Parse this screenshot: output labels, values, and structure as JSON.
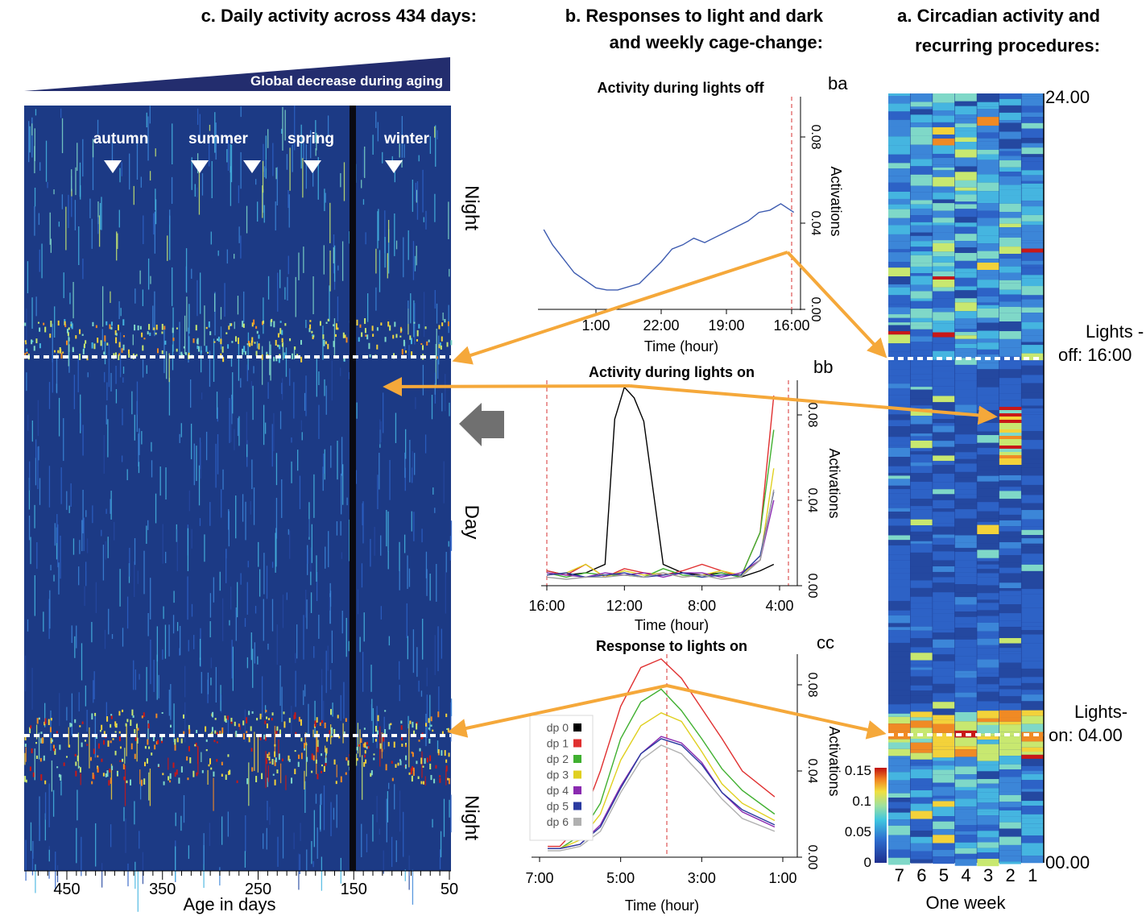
{
  "headers": {
    "a_line1": "a. Circadian activity and",
    "a_line2": "recurring procedures:",
    "b_line1": "b. Responses to light and dark",
    "b_line2": "and weekly cage-change:",
    "c_line1": "c. Daily activity across 434 days:"
  },
  "colors": {
    "heatmap_bg": "#1f3a8f",
    "arrow": "#f5a83a",
    "dashed_line": "#ffffff",
    "banner": "#232d6e",
    "gray_arrow": "#707070",
    "vline": "#e06060"
  },
  "chart_data": [
    {
      "id": "a",
      "type": "heatmap",
      "title": "a. Circadian activity and recurring procedures:",
      "xlabel": "One week",
      "x_ticks": [
        "1",
        "2",
        "3",
        "4",
        "5",
        "6",
        "7"
      ],
      "y_ticks": [
        "24.00",
        "00.00"
      ],
      "markers": [
        {
          "label_line1": "Lights -",
          "label_line2": "off: 16:00"
        },
        {
          "label_line1": "Lights-",
          "label_line2": "on: 04.00"
        }
      ],
      "colorbar": {
        "ticks": [
          "0",
          "0.05",
          "0.1",
          "0.15"
        ],
        "range": [
          0,
          0.15
        ]
      }
    },
    {
      "id": "ba",
      "type": "line",
      "panel_label": "ba",
      "title": "Activity during lights off",
      "xlabel": "Time (hour)",
      "ylabel": "Activations",
      "x_ticks": [
        "16:00",
        "19:00",
        "22:00",
        "1:00"
      ],
      "y_ticks": [
        "0.00",
        "0.04",
        "0.08"
      ],
      "ylim": [
        0,
        0.1
      ],
      "series": [
        {
          "color": "#3d5bb0",
          "x": [
            15.9,
            16.5,
            17.0,
            17.5,
            18.0,
            19.0,
            20.0,
            20.5,
            21.0,
            21.5,
            22.0,
            23.0,
            24.0,
            24.5,
            25.0,
            26.0,
            27.0,
            27.4
          ],
          "values": [
            0.045,
            0.049,
            0.046,
            0.045,
            0.041,
            0.036,
            0.031,
            0.033,
            0.03,
            0.028,
            0.022,
            0.012,
            0.009,
            0.009,
            0.01,
            0.017,
            0.03,
            0.037
          ]
        }
      ]
    },
    {
      "id": "bb",
      "type": "line",
      "panel_label": "bb",
      "title": "Activity during lights on",
      "xlabel": "Time (hour)",
      "ylabel": "Activations",
      "x_ticks": [
        "4:00",
        "8:00",
        "12:00",
        "16:00"
      ],
      "y_ticks": [
        "0.00",
        "0.04",
        "0.08"
      ],
      "ylim": [
        0,
        0.1
      ],
      "series": [
        {
          "color": "#000000",
          "x": [
            4.3,
            5,
            6,
            7,
            8,
            9,
            10,
            11,
            11.5,
            12,
            12.5,
            13,
            14,
            15,
            16
          ],
          "values": [
            0.01,
            0.007,
            0.004,
            0.006,
            0.005,
            0.006,
            0.01,
            0.077,
            0.088,
            0.093,
            0.078,
            0.01,
            0.006,
            0.005,
            0.007
          ]
        },
        {
          "color": "#e03030",
          "x": [
            4.3,
            5,
            6,
            7,
            8,
            9,
            10,
            11,
            12,
            13,
            14,
            15,
            16
          ],
          "values": [
            0.089,
            0.025,
            0.004,
            0.007,
            0.01,
            0.007,
            0.005,
            0.006,
            0.008,
            0.004,
            0.01,
            0.005,
            0.007
          ]
        },
        {
          "color": "#40b030",
          "x": [
            4.3,
            5,
            6,
            7,
            8,
            9,
            10,
            11,
            12,
            13,
            14,
            15,
            16
          ],
          "values": [
            0.073,
            0.025,
            0.004,
            0.006,
            0.004,
            0.005,
            0.008,
            0.004,
            0.005,
            0.005,
            0.006,
            0.004,
            0.006
          ]
        },
        {
          "color": "#e0d020",
          "x": [
            4.3,
            5,
            6,
            7,
            8,
            9,
            10,
            11,
            12,
            13,
            14,
            15,
            16
          ],
          "values": [
            0.055,
            0.012,
            0.005,
            0.007,
            0.005,
            0.004,
            0.006,
            0.005,
            0.007,
            0.004,
            0.01,
            0.006,
            0.005
          ]
        },
        {
          "color": "#8a2ab0",
          "x": [
            4.3,
            5,
            6,
            7,
            8,
            9,
            10,
            11,
            12,
            13,
            14,
            15,
            16
          ],
          "values": [
            0.04,
            0.012,
            0.006,
            0.004,
            0.006,
            0.006,
            0.004,
            0.006,
            0.005,
            0.006,
            0.004,
            0.005,
            0.006
          ]
        },
        {
          "color": "#2a3aa0",
          "x": [
            4.3,
            5,
            6,
            7,
            8,
            9,
            10,
            11,
            12,
            13,
            14,
            15,
            16
          ],
          "values": [
            0.044,
            0.014,
            0.005,
            0.005,
            0.004,
            0.006,
            0.005,
            0.004,
            0.006,
            0.005,
            0.004,
            0.006,
            0.005
          ]
        },
        {
          "color": "#a0a0a0",
          "x": [
            4.3,
            5,
            6,
            7,
            8,
            9,
            10,
            11,
            12,
            13,
            14,
            15,
            16
          ],
          "values": [
            0.045,
            0.012,
            0.004,
            0.003,
            0.005,
            0.004,
            0.006,
            0.004,
            0.005,
            0.004,
            0.004,
            0.003,
            0.004
          ]
        }
      ]
    },
    {
      "id": "cc",
      "type": "line",
      "panel_label": "cc",
      "title": "Response to lights on",
      "xlabel": "Time (hour)",
      "ylabel": "Activations",
      "x_ticks": [
        "1:00",
        "3:00",
        "5:00",
        "7:00"
      ],
      "y_ticks": [
        "0.00",
        "0.04",
        "0.08"
      ],
      "ylim": [
        0,
        0.1
      ],
      "legend": [
        "dp 0",
        "dp 1",
        "dp 2",
        "dp 3",
        "dp 4",
        "dp 5",
        "dp 6"
      ],
      "legend_colors": [
        "#000000",
        "#e03030",
        "#40b030",
        "#e0d020",
        "#8a2ab0",
        "#2a3aa0",
        "#b0b0b0"
      ],
      "series": [
        {
          "name": "dp 1",
          "color": "#e03030",
          "x": [
            1.2,
            2,
            2.5,
            3,
            3.5,
            4,
            4.5,
            5,
            5.5,
            6,
            6.5,
            6.8
          ],
          "values": [
            0.028,
            0.04,
            0.055,
            0.069,
            0.083,
            0.092,
            0.088,
            0.07,
            0.04,
            0.015,
            0.005,
            0.005
          ]
        },
        {
          "name": "dp 2",
          "color": "#40b030",
          "x": [
            1.2,
            2,
            2.5,
            3,
            3.5,
            4,
            4.5,
            5,
            5.5,
            6,
            6.5,
            6.8
          ],
          "values": [
            0.02,
            0.031,
            0.041,
            0.055,
            0.068,
            0.078,
            0.072,
            0.055,
            0.025,
            0.01,
            0.004,
            0.004
          ]
        },
        {
          "name": "dp 3",
          "color": "#e0d020",
          "x": [
            1.2,
            2,
            2.5,
            3,
            3.5,
            4,
            4.5,
            5,
            5.5,
            6,
            6.5,
            6.8
          ],
          "values": [
            0.017,
            0.025,
            0.034,
            0.049,
            0.063,
            0.067,
            0.061,
            0.045,
            0.02,
            0.008,
            0.004,
            0.004
          ]
        },
        {
          "name": "dp 4",
          "color": "#8a2ab0",
          "x": [
            1.2,
            2,
            2.5,
            3,
            3.5,
            4,
            4.5,
            5,
            5.5,
            6,
            6.5,
            6.8
          ],
          "values": [
            0.014,
            0.021,
            0.03,
            0.044,
            0.053,
            0.056,
            0.048,
            0.033,
            0.015,
            0.006,
            0.004,
            0.004
          ]
        },
        {
          "name": "dp 5",
          "color": "#2a3aa0",
          "x": [
            1.2,
            2,
            2.5,
            3,
            3.5,
            4,
            4.5,
            5,
            5.5,
            6,
            6.5,
            6.8
          ],
          "values": [
            0.015,
            0.022,
            0.03,
            0.043,
            0.052,
            0.055,
            0.048,
            0.032,
            0.014,
            0.006,
            0.004,
            0.004
          ]
        },
        {
          "name": "dp 6",
          "color": "#b0b0b0",
          "x": [
            1.2,
            2,
            2.5,
            3,
            3.5,
            4,
            4.5,
            5,
            5.5,
            6,
            6.5,
            6.8
          ],
          "values": [
            0.012,
            0.018,
            0.027,
            0.038,
            0.048,
            0.052,
            0.045,
            0.03,
            0.012,
            0.005,
            0.003,
            0.003
          ]
        }
      ]
    },
    {
      "id": "c",
      "type": "heatmap",
      "title": "c. Daily activity across 434 days:",
      "banner": "Global decrease during aging",
      "xlabel": "Age in days",
      "x_ticks": [
        "50",
        "150",
        "250",
        "350",
        "450"
      ],
      "xlim": [
        50,
        484
      ],
      "seasons": [
        {
          "label": "winter",
          "day": 110
        },
        {
          "label": "spring",
          "day": 200
        },
        {
          "label": "summer",
          "day": 265
        },
        {
          "label": "summer_marker",
          "day": 305
        },
        {
          "label": "autumn",
          "day": 405
        }
      ],
      "season_labels": [
        "winter",
        "spring",
        "summer",
        "autumn"
      ],
      "side_labels": {
        "top": "Night",
        "middle": "Day",
        "bottom": "Night"
      }
    }
  ]
}
